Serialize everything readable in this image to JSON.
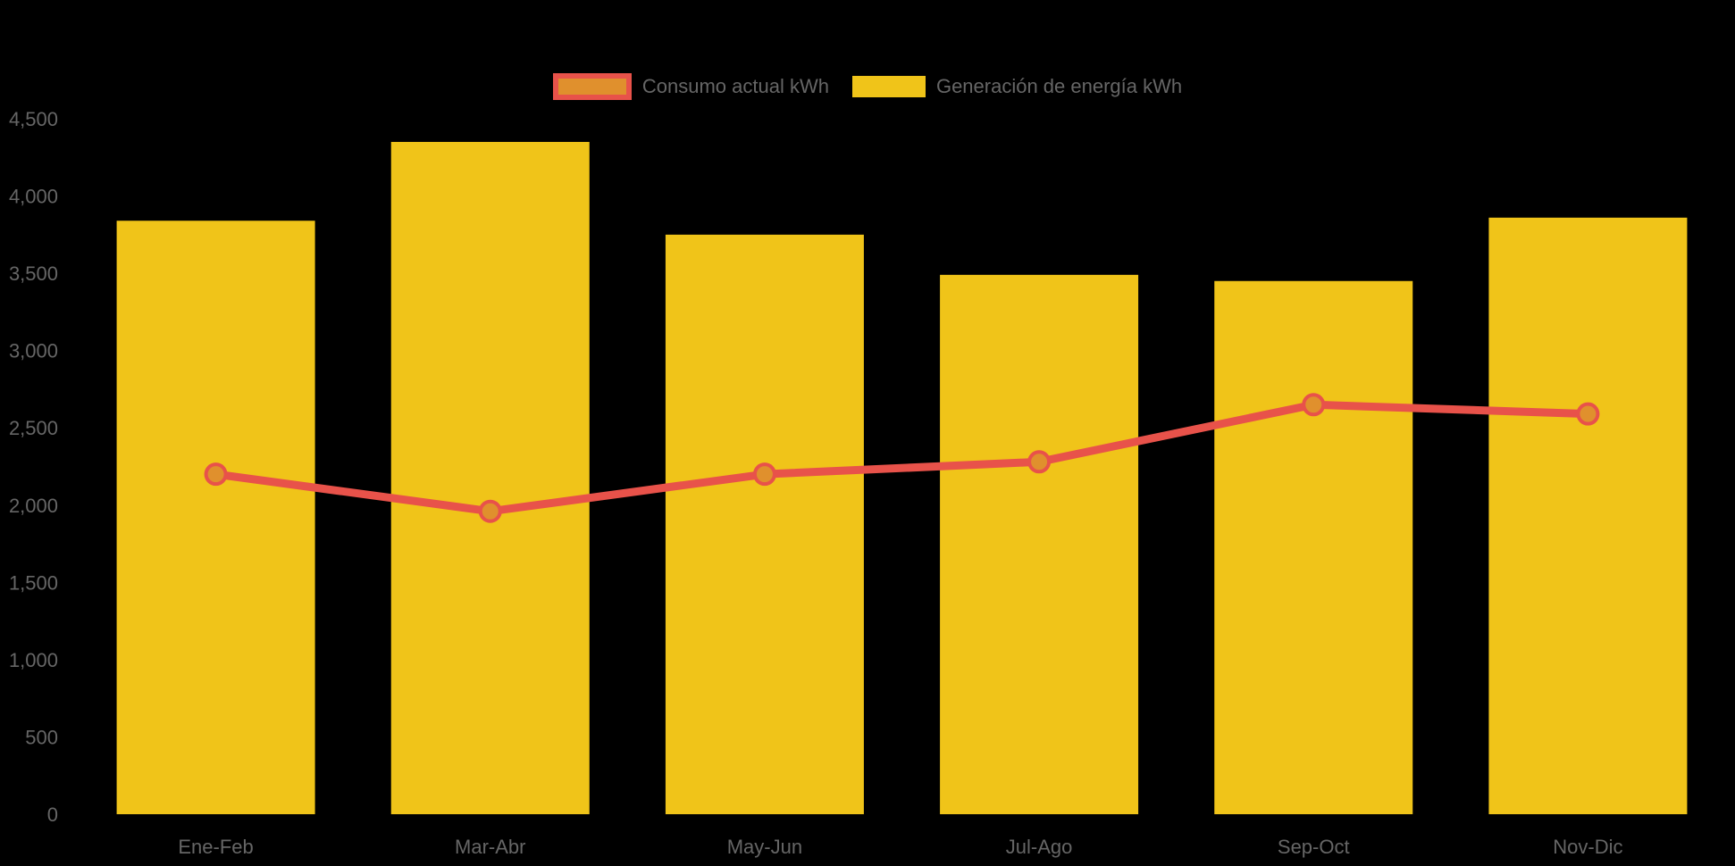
{
  "chart": {
    "background_color": "#000000",
    "text_color": "#666666",
    "accent_yellow": "#F0C419",
    "accent_red": "#E8524A",
    "accent_orange": "#E0902D"
  },
  "legend": {
    "items": [
      {
        "label": "Consumo actual kWh",
        "swatch": "orange-fill-red-border"
      },
      {
        "label": "Generación de energía kWh",
        "swatch": "yellow-fill"
      }
    ]
  },
  "chart_data": {
    "type": "bar+line",
    "categories": [
      "Ene-Feb",
      "Mar-Abr",
      "May-Jun",
      "Jul-Ago",
      "Sep-Oct",
      "Nov-Dic"
    ],
    "series": [
      {
        "name": "Generación de energía kWh",
        "type": "bar",
        "color": "#F0C419",
        "values": [
          3840,
          4350,
          3750,
          3490,
          3450,
          3860
        ]
      },
      {
        "name": "Consumo actual kWh",
        "type": "line",
        "color": "#E8524A",
        "marker_fill": "#E0902D",
        "values": [
          2200,
          1960,
          2200,
          2280,
          2650,
          2590
        ]
      }
    ],
    "ylabel": "",
    "xlabel": "",
    "ylim": [
      0,
      4500
    ],
    "ytick_step": 500,
    "ytick_labels": [
      "0",
      "500",
      "1,000",
      "1,500",
      "2,000",
      "2,500",
      "3,000",
      "3,500",
      "4,000",
      "4,500"
    ],
    "grid": false,
    "legend_position": "top-center"
  }
}
